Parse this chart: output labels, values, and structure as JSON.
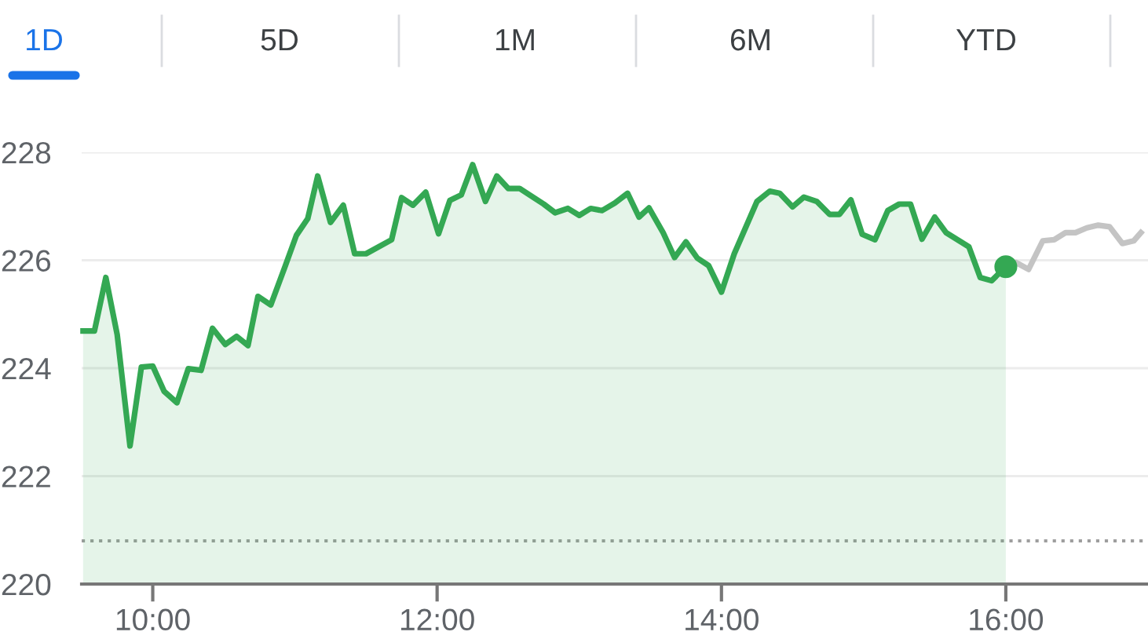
{
  "chart_data": {
    "type": "area",
    "annotations": [
      "1D",
      "5D",
      "1M",
      "6M",
      "YTD"
    ],
    "xlim": [
      9.5,
      17.0
    ],
    "xticks": [
      {
        "value": 10,
        "label": "10:00"
      },
      {
        "value": 12,
        "label": "12:00"
      },
      {
        "value": 14,
        "label": "14:00"
      },
      {
        "value": 16,
        "label": "16:00"
      }
    ],
    "ylim": [
      220,
      228
    ],
    "yticks": [
      220,
      222,
      224,
      226,
      228
    ],
    "grid": "y",
    "line_style": "solid",
    "ref_lines": [
      {
        "axis": "y",
        "value": 220.8,
        "line_style": "dotted",
        "color": "#9e9e9e"
      }
    ],
    "series": [
      {
        "color": "#34a853",
        "x": [
          9.51,
          9.59,
          9.67,
          9.75,
          9.84,
          9.92,
          10.0,
          10.08,
          10.17,
          10.25,
          10.34,
          10.42,
          10.51,
          10.59,
          10.67,
          10.74,
          10.83,
          10.93,
          11.01,
          11.09,
          11.16,
          11.25,
          11.34,
          11.42,
          11.5,
          11.68,
          11.75,
          11.83,
          11.92,
          12.01,
          12.09,
          12.17,
          12.25,
          12.34,
          12.42,
          12.5,
          12.58,
          12.75,
          12.83,
          12.92,
          13.0,
          13.08,
          13.16,
          13.25,
          13.34,
          13.42,
          13.49,
          13.59,
          13.67,
          13.75,
          13.83,
          13.91,
          14.0,
          14.09,
          14.25,
          14.34,
          14.41,
          14.5,
          14.58,
          14.67,
          14.76,
          14.83,
          14.91,
          14.99,
          15.08,
          15.17,
          15.25,
          15.33,
          15.41,
          15.5,
          15.58,
          15.66,
          15.74,
          15.82,
          15.9,
          16.0
        ],
        "values": [
          224.69,
          224.69,
          225.68,
          224.62,
          222.56,
          224.02,
          224.04,
          223.57,
          223.36,
          223.99,
          223.96,
          224.74,
          224.44,
          224.59,
          224.42,
          225.33,
          225.17,
          225.88,
          226.46,
          226.77,
          227.56,
          226.7,
          227.02,
          226.12,
          226.12,
          226.38,
          227.16,
          227.02,
          227.26,
          226.49,
          227.11,
          227.21,
          227.77,
          227.09,
          227.56,
          227.33,
          227.33,
          227.04,
          226.88,
          226.96,
          226.83,
          226.96,
          226.92,
          227.06,
          227.24,
          226.8,
          226.97,
          226.51,
          226.05,
          226.34,
          226.04,
          225.9,
          225.41,
          226.12,
          227.09,
          227.28,
          227.24,
          226.99,
          227.17,
          227.09,
          226.85,
          226.85,
          227.12,
          226.48,
          226.38,
          226.92,
          227.04,
          227.04,
          226.39,
          226.8,
          226.51,
          226.38,
          226.25,
          225.68,
          225.62,
          225.88
        ]
      },
      {
        "type": "line",
        "color": "#c4c4c4",
        "x": [
          16.0,
          16.07,
          16.16,
          16.26,
          16.34,
          16.42,
          16.49,
          16.57,
          16.65,
          16.73,
          16.82,
          16.9,
          16.95
        ],
        "values": [
          225.88,
          225.96,
          225.83,
          226.36,
          226.38,
          226.51,
          226.51,
          226.6,
          226.65,
          226.62,
          226.31,
          226.36,
          226.51
        ]
      },
      {
        "type": "scatter",
        "color": "#34a853",
        "marker": "circle",
        "x": [
          16.0
        ],
        "values": [
          225.88
        ]
      }
    ]
  }
}
